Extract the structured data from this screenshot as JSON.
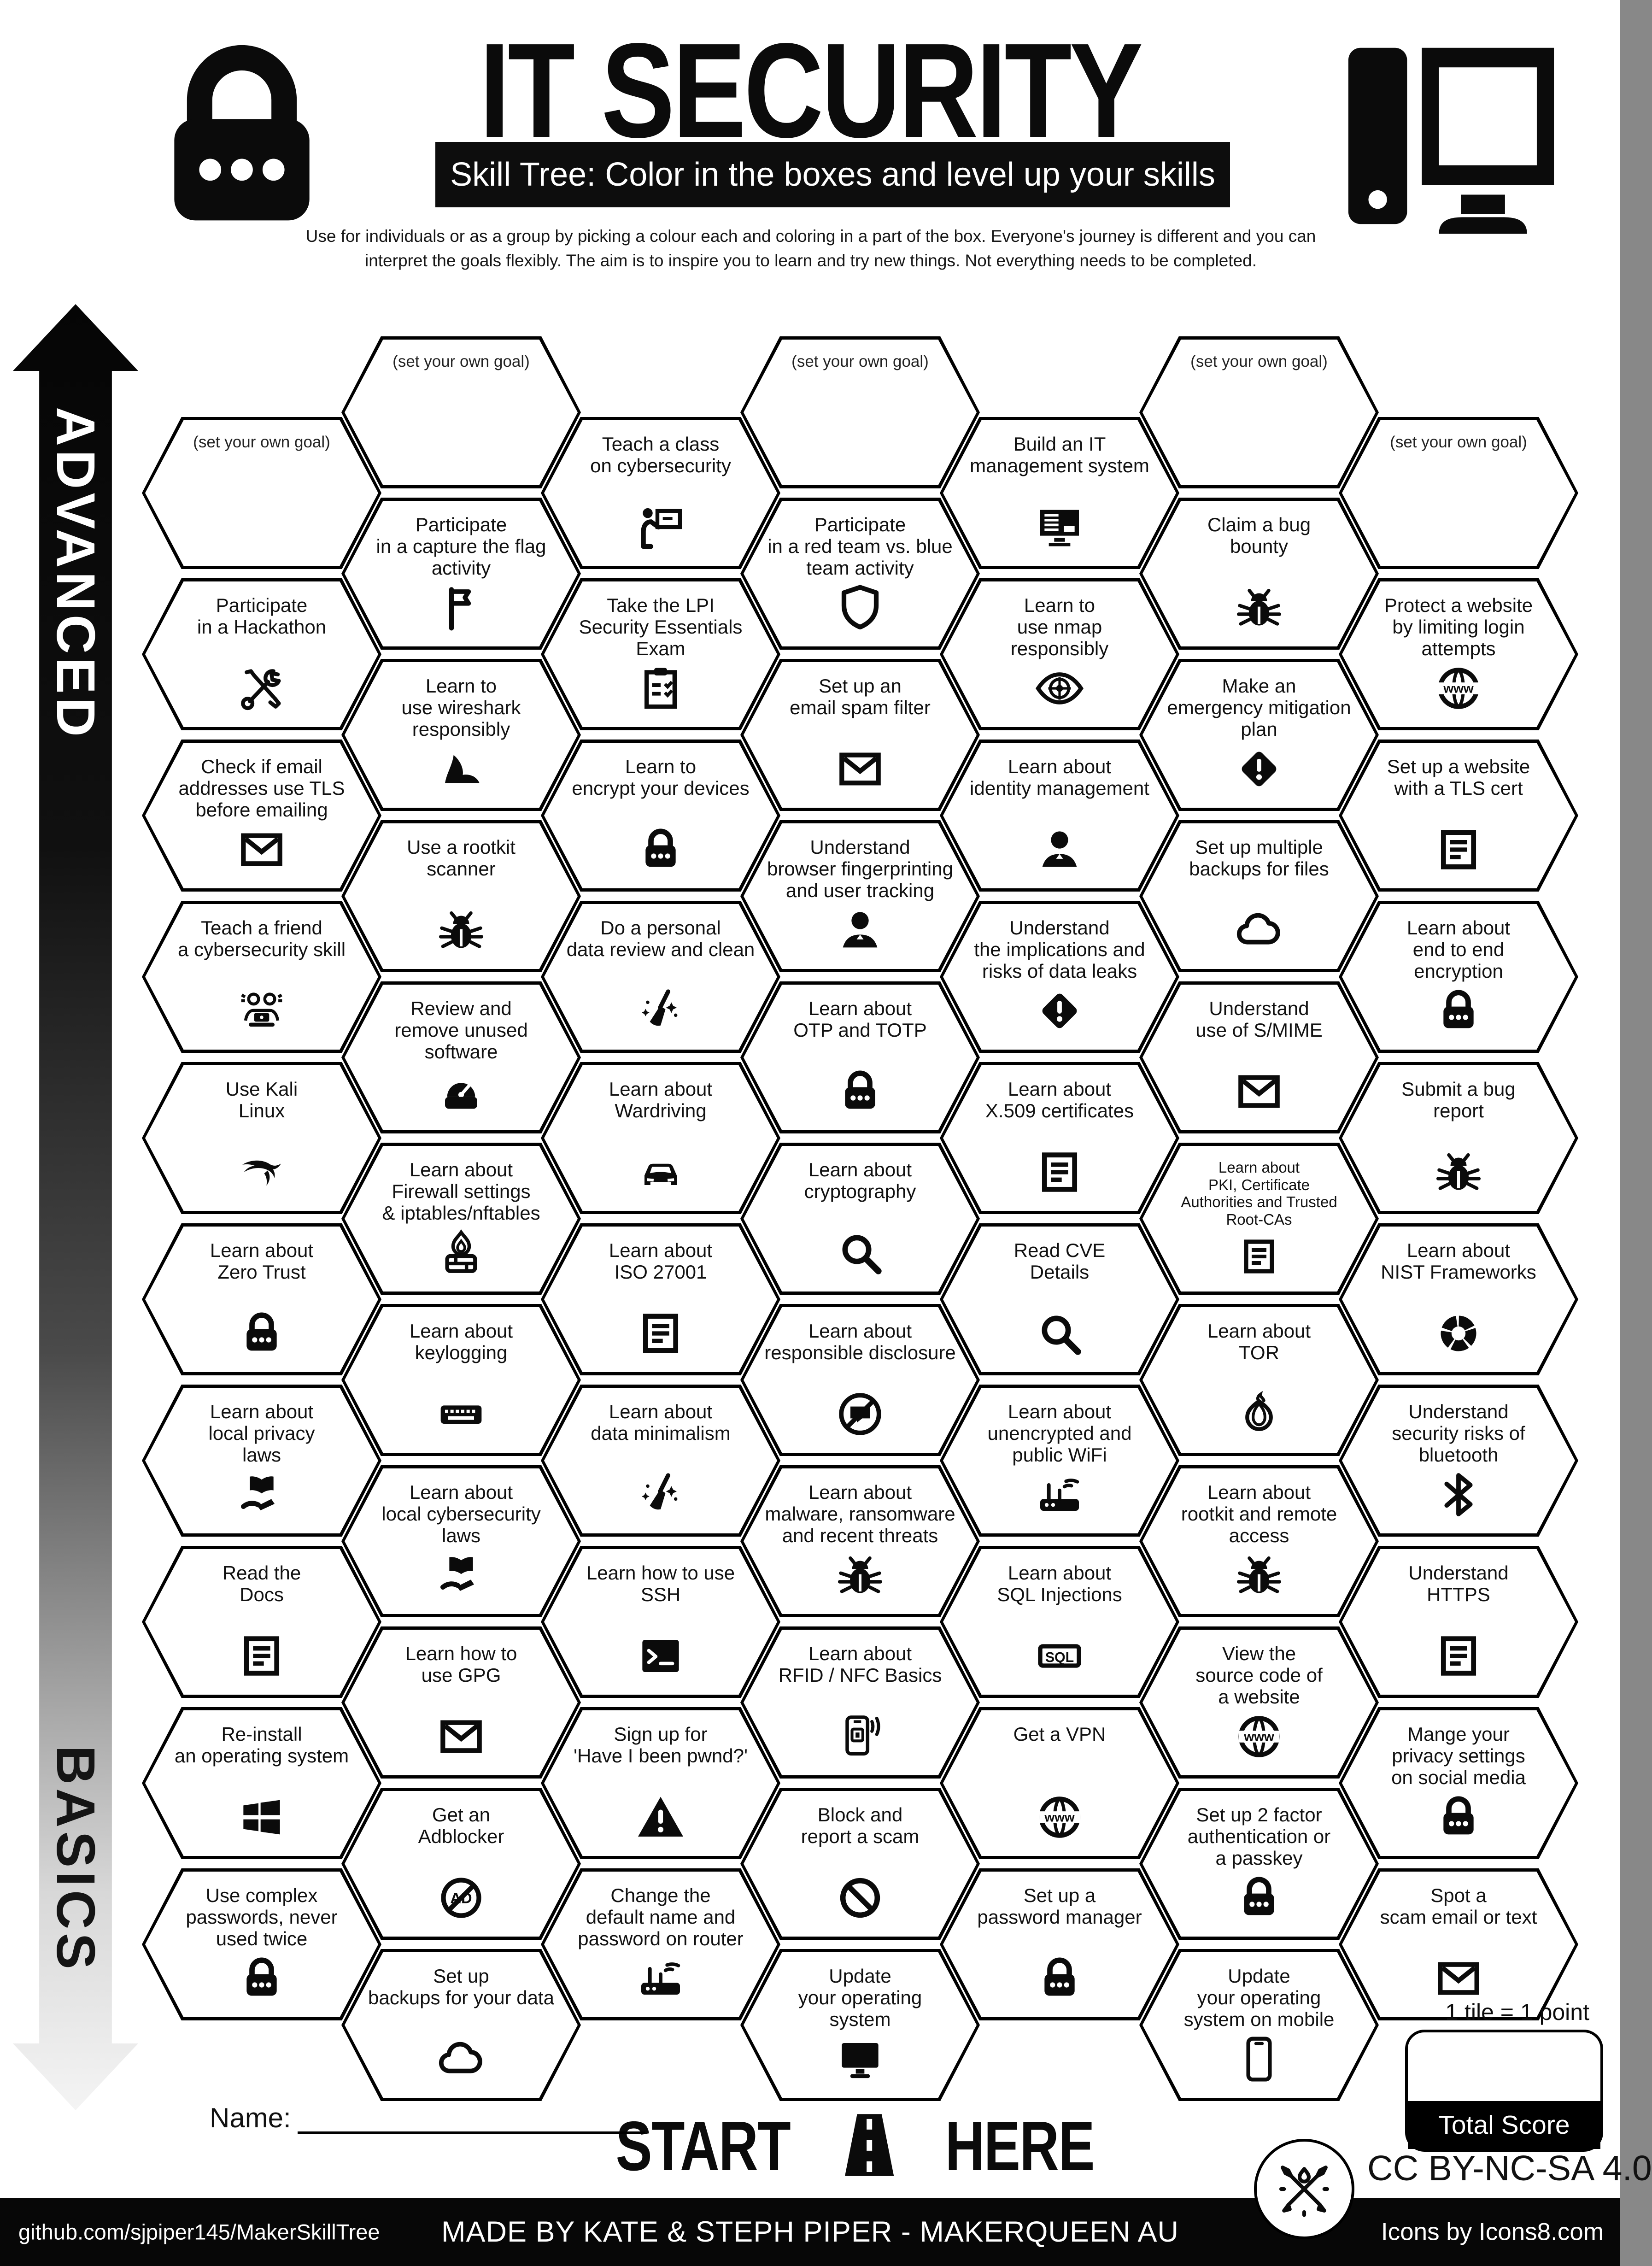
{
  "header": {
    "title": "IT SECURITY",
    "subtitle": "Skill Tree:  Color in the boxes and level up your skills",
    "intro_line1": "Use for individuals or as a group by picking a colour each and coloring in a part of the box.  Everyone's journey is different and you can",
    "intro_line2": "interpret the goals flexibly.  The aim is to inspire you to learn and try new things. Not everything needs to be completed.",
    "left_icon": "padlock-icon",
    "right_icon": "desktop-computer-icon"
  },
  "axis": {
    "advanced": "ADVANCED",
    "basics": "BASICS"
  },
  "start_here": {
    "start": "START",
    "here": "HERE",
    "icon": "road-icon"
  },
  "scoring": {
    "tile_points": "1 tile = 1 point",
    "total_label": "Total Score"
  },
  "name_label": "Name:",
  "license": "CC BY-NC-SA 4.0",
  "footer": {
    "repo": "github.com/sjpiper145/MakerSkillTree",
    "credit": "MADE BY KATE & STEPH PIPER  -  MAKERQUEEN AU",
    "icons_credit": "Icons by Icons8.com"
  },
  "colors": {
    "ink": "#0b0b0b",
    "paper": "#ffffff"
  },
  "skill_tree": {
    "columns": [
      {
        "tiles": [
          {
            "goal": true,
            "lines": [
              "(set your own goal)"
            ]
          },
          {
            "lines": [
              "Participate",
              "in a Hackathon"
            ],
            "icon": "tools"
          },
          {
            "lines": [
              "Check if email",
              "addresses use TLS",
              "before emailing"
            ],
            "icon": "envelope"
          },
          {
            "lines": [
              "Teach a friend",
              "a cybersecurity skill"
            ],
            "icon": "peoplelaptop"
          },
          {
            "lines": [
              "Use Kali",
              "Linux"
            ],
            "icon": "kali"
          },
          {
            "lines": [
              "Learn about",
              "Zero Trust"
            ],
            "icon": "lock"
          },
          {
            "lines": [
              "Learn about",
              "local privacy",
              "laws"
            ],
            "icon": "bookhand"
          },
          {
            "lines": [
              "Read the",
              "Docs"
            ],
            "icon": "doc"
          },
          {
            "lines": [
              "Re-install",
              "an operating system"
            ],
            "icon": "windows"
          },
          {
            "lines": [
              "Use complex",
              "passwords, never",
              "used twice"
            ],
            "icon": "lock"
          }
        ]
      },
      {
        "tiles": [
          {
            "goal": true,
            "lines": [
              "(set your own goal)"
            ]
          },
          {
            "lines": [
              "Participate",
              "in a capture the flag",
              "activity"
            ],
            "icon": "flag"
          },
          {
            "lines": [
              "Learn to",
              "use wireshark",
              "responsibly"
            ],
            "icon": "shark"
          },
          {
            "lines": [
              "Use a rootkit",
              "scanner"
            ],
            "icon": "bug"
          },
          {
            "lines": [
              "Review and",
              "remove unused",
              "software"
            ],
            "icon": "gauge"
          },
          {
            "lines": [
              "Learn about",
              "Firewall settings",
              "& iptables/nftables"
            ],
            "icon": "firewall"
          },
          {
            "lines": [
              "Learn about",
              "keylogging"
            ],
            "icon": "keyboard"
          },
          {
            "lines": [
              "Learn about",
              "local cybersecurity",
              "laws"
            ],
            "icon": "bookhand"
          },
          {
            "lines": [
              "Learn how to",
              "use GPG"
            ],
            "icon": "envelope"
          },
          {
            "lines": [
              "Get an",
              "Adblocker"
            ],
            "icon": "adblock"
          },
          {
            "lines": [
              "Set up",
              "backups for your data"
            ],
            "icon": "cloud"
          }
        ]
      },
      {
        "tiles": [
          {
            "lines": [
              "Teach a class",
              "on cybersecurity"
            ],
            "icon": "teacher"
          },
          {
            "lines": [
              "Take the LPI",
              "Security Essentials",
              "Exam"
            ],
            "icon": "clipboard"
          },
          {
            "lines": [
              "Learn to",
              "encrypt your devices"
            ],
            "icon": "lock"
          },
          {
            "lines": [
              "Do a personal",
              "data review and clean"
            ],
            "icon": "broom"
          },
          {
            "lines": [
              "Learn about",
              "Wardriving"
            ],
            "icon": "car"
          },
          {
            "lines": [
              "Learn about",
              "ISO 27001"
            ],
            "icon": "doc"
          },
          {
            "lines": [
              "Learn about",
              "data minimalism"
            ],
            "icon": "broom"
          },
          {
            "lines": [
              "Learn how to use",
              "SSH"
            ],
            "icon": "terminal"
          },
          {
            "lines": [
              "Sign up for",
              "'Have I been pwnd?'"
            ],
            "icon": "warning"
          },
          {
            "lines": [
              "Change the",
              "default name and",
              "password on router"
            ],
            "icon": "router"
          }
        ]
      },
      {
        "tiles": [
          {
            "goal": true,
            "lines": [
              "(set your own goal)"
            ]
          },
          {
            "lines": [
              "Participate",
              "in a red team vs. blue",
              "team activity"
            ],
            "icon": "shield"
          },
          {
            "lines": [
              "Set up an",
              "email spam filter"
            ],
            "icon": "envelope"
          },
          {
            "lines": [
              "Understand",
              "browser fingerprinting",
              "and user tracking"
            ],
            "icon": "person"
          },
          {
            "lines": [
              "Learn about",
              "OTP and TOTP"
            ],
            "icon": "lock"
          },
          {
            "lines": [
              "Learn about",
              "cryptography"
            ],
            "icon": "magnifier"
          },
          {
            "lines": [
              "Learn about",
              "responsible disclosure"
            ],
            "icon": "nochat"
          },
          {
            "lines": [
              "Learn about",
              "malware, ransomware",
              "and recent threats"
            ],
            "icon": "bug"
          },
          {
            "lines": [
              "Learn about",
              "RFID / NFC Basics"
            ],
            "icon": "phonenfc"
          },
          {
            "lines": [
              "Block and",
              "report a scam"
            ],
            "icon": "prohibit"
          },
          {
            "lines": [
              "Update",
              "your operating",
              "system"
            ],
            "icon": "monitor"
          }
        ]
      },
      {
        "tiles": [
          {
            "lines": [
              "Build an IT",
              "management system"
            ],
            "icon": "computer"
          },
          {
            "lines": [
              "Learn to",
              "use nmap",
              "responsibly"
            ],
            "icon": "eyetarget"
          },
          {
            "lines": [
              "Learn about",
              "identity management"
            ],
            "icon": "person"
          },
          {
            "lines": [
              "Understand",
              "the implications and",
              "risks of data leaks"
            ],
            "icon": "diamondwarn"
          },
          {
            "lines": [
              "Learn about",
              "X.509 certificates"
            ],
            "icon": "doc"
          },
          {
            "lines": [
              "Read CVE",
              "Details"
            ],
            "icon": "magnifier"
          },
          {
            "lines": [
              "Learn about",
              "unencrypted and",
              "public WiFi"
            ],
            "icon": "router"
          },
          {
            "lines": [
              "Learn about",
              "SQL Injections"
            ],
            "icon": "sql"
          },
          {
            "lines": [
              "Get a VPN"
            ],
            "icon": "globe"
          },
          {
            "lines": [
              "Set up a",
              "password manager"
            ],
            "icon": "lock"
          }
        ]
      },
      {
        "tiles": [
          {
            "goal": true,
            "lines": [
              "(set your own goal)"
            ]
          },
          {
            "lines": [
              "Claim a bug",
              "bounty"
            ],
            "icon": "bug"
          },
          {
            "lines": [
              "Make an",
              "emergency mitigation",
              "plan"
            ],
            "icon": "diamondwarn"
          },
          {
            "lines": [
              "Set up multiple",
              "backups for files"
            ],
            "icon": "cloud"
          },
          {
            "lines": [
              "Understand",
              "use of S/MIME"
            ],
            "icon": "envelope"
          },
          {
            "small": true,
            "lines": [
              "Learn about",
              "PKI, Certificate",
              "Authorities and Trusted",
              "Root-CAs"
            ],
            "icon": "doc"
          },
          {
            "lines": [
              "Learn about",
              "TOR"
            ],
            "icon": "onion"
          },
          {
            "lines": [
              "Learn about",
              "rootkit and remote",
              "access"
            ],
            "icon": "bug"
          },
          {
            "lines": [
              "View the",
              "source code of",
              "a website"
            ],
            "icon": "globe"
          },
          {
            "lines": [
              "Set up 2 factor",
              "authentication or",
              "a passkey"
            ],
            "icon": "lock"
          },
          {
            "lines": [
              "Update",
              "your operating",
              "system on mobile"
            ],
            "icon": "smartphone"
          }
        ]
      },
      {
        "tiles": [
          {
            "goal": true,
            "lines": [
              "(set your own goal)"
            ]
          },
          {
            "lines": [
              "Protect a website",
              "by limiting login",
              "attempts"
            ],
            "icon": "globe"
          },
          {
            "lines": [
              "Set up a website",
              "with a TLS cert"
            ],
            "icon": "doc"
          },
          {
            "lines": [
              "Learn about",
              "end to end",
              "encryption"
            ],
            "icon": "lock"
          },
          {
            "lines": [
              "Submit a bug",
              "report"
            ],
            "icon": "bug"
          },
          {
            "lines": [
              "Learn about",
              "NIST Frameworks"
            ],
            "icon": "donut"
          },
          {
            "lines": [
              "Understand",
              "security risks of",
              "bluetooth"
            ],
            "icon": "bluetooth"
          },
          {
            "lines": [
              "Understand",
              "HTTPS"
            ],
            "icon": "doc"
          },
          {
            "lines": [
              "Mange your",
              "privacy settings",
              "on social media"
            ],
            "icon": "lock"
          },
          {
            "lines": [
              "Spot a",
              "scam email or text"
            ],
            "icon": "envelope"
          }
        ]
      }
    ]
  }
}
